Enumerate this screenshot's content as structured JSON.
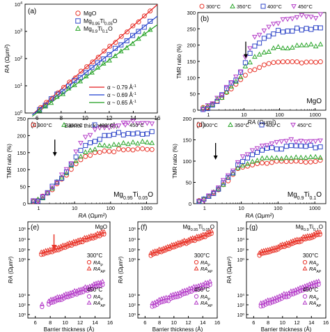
{
  "colors": {
    "red": "#e8352a",
    "blue": "#2f46c8",
    "green": "#2aa52a",
    "purple": "#b43cc8",
    "line_red": "#e41a1c",
    "line_blue": "#1f3fd0",
    "line_green": "#1e9e1e",
    "arrow_red": "#e8352a",
    "arrow_black": "#000000"
  },
  "chart_data": [
    {
      "panel": "(a)",
      "type": "scatter",
      "xlabel": "Barrier thickness (Å)",
      "ylabel_italic": "RA",
      "ylabel_unit": "(Ωμm²)",
      "xlim": [
        5,
        16
      ],
      "ylim_log": [
        0,
        4
      ],
      "xticks": [
        6,
        8,
        10,
        12,
        14,
        16
      ],
      "yticks": [
        {
          "v": 0,
          "t": "10",
          "e": "0"
        },
        {
          "v": 1,
          "t": "10",
          "e": "1"
        },
        {
          "v": 2,
          "t": "10",
          "e": "2"
        },
        {
          "v": 3,
          "t": "10",
          "e": "3"
        },
        {
          "v": 4,
          "t": "10",
          "e": "4"
        }
      ],
      "legend_top": [
        {
          "name": "MgO",
          "marker": "circle",
          "color": "red"
        },
        {
          "name": "Mg",
          "sub": "0.95",
          "name2": "Ti",
          "sub2": "0.05",
          "name3": "O",
          "marker": "square",
          "color": "blue"
        },
        {
          "name": "Mg",
          "sub": "0.9",
          "name2": "Ti",
          "sub2": "0.1",
          "name3": "O",
          "marker": "triangle",
          "color": "green"
        }
      ],
      "legend_bottom": [
        {
          "text": "α ~ 0.79 Å",
          "sup": "-1",
          "color": "line_red"
        },
        {
          "text": "α ~ 0.69 Å",
          "sup": "-1",
          "color": "line_blue"
        },
        {
          "text": "α ~ 0.65 Å",
          "sup": "-1",
          "color": "line_green"
        }
      ],
      "series": [
        {
          "name": "MgO",
          "marker": "circle",
          "color": "red",
          "x_start": 6.3,
          "x_end": 15.4,
          "y_start": 0.2,
          "y_end": 3.75,
          "n": 20
        },
        {
          "name": "Mg0.95Ti0.05O",
          "marker": "square",
          "color": "blue",
          "x_start": 6.2,
          "x_end": 15.4,
          "y_start": 0.15,
          "y_end": 3.35,
          "n": 20
        },
        {
          "name": "Mg0.9Ti0.1O",
          "marker": "triangle",
          "color": "green",
          "x_start": 6.2,
          "x_end": 15.4,
          "y_start": 0.1,
          "y_end": 3.05,
          "n": 20
        }
      ]
    },
    {
      "panel": "(b)",
      "type": "scatter",
      "material": "MgO",
      "xlabel_italic": "RA",
      "xlabel_unit": "(Ωμm²)",
      "ylabel": "TMR ratio (%)",
      "xlim_log": [
        -0.3,
        3.3
      ],
      "ylim": [
        0,
        300
      ],
      "xticks": [
        {
          "v": 0,
          "t": "1"
        },
        {
          "v": 1,
          "t": "10"
        },
        {
          "v": 2,
          "t": "100"
        },
        {
          "v": 3,
          "t": "1000"
        }
      ],
      "yticks": [
        0,
        50,
        100,
        150,
        200,
        250,
        300
      ],
      "legend": [
        {
          "name": "300°C",
          "marker": "circle",
          "color": "red"
        },
        {
          "name": "350°C",
          "marker": "triangle",
          "color": "green"
        },
        {
          "name": "400°C",
          "marker": "square",
          "color": "blue"
        },
        {
          "name": "450°C",
          "marker": "triangle-down",
          "color": "purple"
        }
      ],
      "arrow_x_log": 1.05,
      "arrow_y": 155,
      "series": [
        {
          "name": "300°C",
          "color": "red",
          "marker": "circle",
          "plateau": 150,
          "knee": 95
        },
        {
          "name": "350°C",
          "color": "green",
          "marker": "triangle",
          "plateau": 200,
          "knee": 105
        },
        {
          "name": "400°C",
          "color": "blue",
          "marker": "square",
          "plateau": 255,
          "knee": 115
        },
        {
          "name": "450°C",
          "color": "purple",
          "marker": "triangle-down",
          "plateau": 290,
          "knee": 120
        }
      ]
    },
    {
      "panel": "(c)",
      "type": "scatter",
      "material_parts": [
        "Mg",
        "0.95",
        "Ti",
        "0.05",
        "O"
      ],
      "xlabel_italic": "RA",
      "xlabel_unit": "(Ωμm²)",
      "ylabel": "TMR ratio (%)",
      "xlim_log": [
        -0.3,
        3.3
      ],
      "ylim": [
        0,
        250
      ],
      "xticks": [
        {
          "v": 0,
          "t": "1"
        },
        {
          "v": 1,
          "t": "10"
        },
        {
          "v": 2,
          "t": "100"
        },
        {
          "v": 3,
          "t": "1000"
        }
      ],
      "yticks": [
        0,
        50,
        100,
        150,
        200,
        250
      ],
      "legend": [
        {
          "name": "300°C",
          "marker": "circle",
          "color": "red"
        },
        {
          "name": "350°C",
          "marker": "triangle",
          "color": "green"
        },
        {
          "name": "400°C",
          "marker": "square",
          "color": "blue"
        },
        {
          "name": "450°C",
          "marker": "triangle-down",
          "color": "purple"
        }
      ],
      "arrow_x_log": 0.45,
      "arrow_y": 135,
      "series": [
        {
          "name": "300°C",
          "color": "red",
          "marker": "circle",
          "plateau": 160,
          "knee": 100
        },
        {
          "name": "350°C",
          "color": "green",
          "marker": "triangle",
          "plateau": 180,
          "knee": 110
        },
        {
          "name": "400°C",
          "color": "blue",
          "marker": "square",
          "plateau": 210,
          "knee": 115
        },
        {
          "name": "450°C",
          "color": "purple",
          "marker": "triangle-down",
          "plateau": 240,
          "knee": 120
        }
      ]
    },
    {
      "panel": "(d)",
      "type": "scatter",
      "material_parts": [
        "Mg",
        "0.9",
        "Ti",
        "0.1",
        "O"
      ],
      "xlabel_italic": "RA",
      "xlabel_unit": "(Ωμm²)",
      "ylabel": "TMR ratio (%)",
      "xlim_log": [
        -0.3,
        3.3
      ],
      "ylim": [
        0,
        200
      ],
      "xticks": [
        {
          "v": 0,
          "t": "1"
        },
        {
          "v": 1,
          "t": "10"
        },
        {
          "v": 2,
          "t": "100"
        },
        {
          "v": 3,
          "t": "1000"
        }
      ],
      "yticks": [
        0,
        50,
        100,
        150,
        200
      ],
      "legend": [
        {
          "name": "300°C",
          "marker": "circle",
          "color": "red"
        },
        {
          "name": "350°C",
          "marker": "triangle",
          "color": "green"
        },
        {
          "name": "400°C",
          "marker": "square",
          "color": "blue"
        },
        {
          "name": "450°C",
          "marker": "triangle-down",
          "color": "purple"
        }
      ],
      "arrow_x_log": 0.3,
      "arrow_y": 100,
      "series": [
        {
          "name": "300°C",
          "color": "red",
          "marker": "circle",
          "plateau": 100,
          "knee": 80
        },
        {
          "name": "350°C",
          "color": "green",
          "marker": "triangle",
          "plateau": 110,
          "knee": 85
        },
        {
          "name": "400°C",
          "color": "blue",
          "marker": "square",
          "plateau": 135,
          "knee": 90
        },
        {
          "name": "450°C",
          "color": "purple",
          "marker": "triangle-down",
          "plateau": 150,
          "knee": 95
        }
      ]
    },
    {
      "panel": "(e)",
      "type": "scatter",
      "material": "MgO",
      "xlabel": "Barrier thickness (Å)",
      "ylabel_italic": "RA",
      "ylabel_unit": "(Ωμm²)",
      "xlim": [
        5,
        16
      ],
      "xticks": [
        6,
        8,
        10,
        12,
        14,
        16
      ],
      "yticks": [
        {
          "t": "10",
          "e": "0"
        },
        {
          "t": "10",
          "e": "2"
        },
        {
          "t": "10",
          "e": "4"
        },
        {
          "t": "10",
          "e": "6"
        },
        {
          "t": "10",
          "e": "0"
        },
        {
          "t": "10",
          "e": "2"
        },
        {
          "t": "10",
          "e": "4"
        }
      ],
      "label_top": "300°C",
      "label_bottom": "450°C",
      "legend_top": [
        {
          "t": "RA",
          "s": "P"
        },
        {
          "t": "RA",
          "s": "AP"
        }
      ],
      "legend_bottom": [
        {
          "t": "RA",
          "s": "P"
        },
        {
          "t": "RA",
          "s": "AP"
        }
      ],
      "arrow_x": 8.5
    },
    {
      "panel": "(f)",
      "type": "scatter",
      "material_parts": [
        "Mg",
        "0.95",
        "Ti",
        "0.05",
        "O"
      ],
      "xlabel": "Barrier thickness (Å)",
      "ylabel_italic": "RA",
      "ylabel_unit": "(Ωμm²)",
      "xlim": [
        5,
        16
      ],
      "xticks": [
        6,
        8,
        10,
        12,
        14,
        16
      ],
      "yticks": [
        {
          "t": "10",
          "e": "0"
        },
        {
          "t": "10",
          "e": "2"
        },
        {
          "t": "10",
          "e": "4"
        },
        {
          "t": "10",
          "e": "6"
        },
        {
          "t": "10",
          "e": "0"
        },
        {
          "t": "10",
          "e": "2"
        },
        {
          "t": "10",
          "e": "4"
        }
      ],
      "label_top": "300°C",
      "label_bottom": "450°C",
      "legend_top": [
        {
          "t": "RA",
          "s": "P"
        },
        {
          "t": "RA",
          "s": "AP"
        }
      ],
      "legend_bottom": [
        {
          "t": "RA",
          "s": "P"
        },
        {
          "t": "RA",
          "s": "AP"
        }
      ]
    },
    {
      "panel": "(g)",
      "type": "scatter",
      "material_parts": [
        "Mg",
        "0.9",
        "Ti",
        "0.1",
        "O"
      ],
      "xlabel": "Barrier thickness (Å)",
      "ylabel_italic": "RA",
      "ylabel_unit": "(Ωμm²)",
      "xlim": [
        5,
        16
      ],
      "xticks": [
        6,
        8,
        10,
        12,
        14,
        16
      ],
      "yticks": [
        {
          "t": "10",
          "e": "0"
        },
        {
          "t": "10",
          "e": "2"
        },
        {
          "t": "10",
          "e": "4"
        },
        {
          "t": "10",
          "e": "6"
        },
        {
          "t": "10",
          "e": "0"
        },
        {
          "t": "10",
          "e": "2"
        },
        {
          "t": "10",
          "e": "4"
        }
      ],
      "label_top": "300°C",
      "label_bottom": "450°C",
      "legend_top": [
        {
          "t": "RA",
          "s": "P"
        },
        {
          "t": "RA",
          "s": "AP"
        }
      ],
      "legend_bottom": [
        {
          "t": "RA",
          "s": "P"
        },
        {
          "t": "RA",
          "s": "AP"
        }
      ]
    }
  ]
}
